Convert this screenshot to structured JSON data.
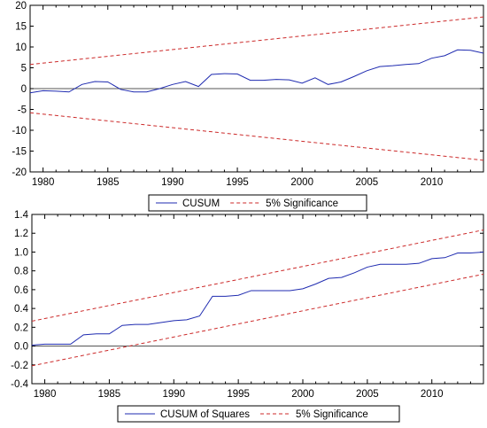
{
  "colors": {
    "series": "#1f2bb0",
    "significance": "#cc2a2a",
    "zero_line": "#555555"
  },
  "chart_data": [
    {
      "type": "line",
      "xlim": [
        1979,
        2014
      ],
      "ylim": [
        -20,
        20
      ],
      "xticks": [
        1980,
        1985,
        1990,
        1995,
        2000,
        2005,
        2010
      ],
      "yticks": [
        -20,
        -15,
        -10,
        -5,
        0,
        5,
        10,
        15,
        20
      ],
      "ytick_labels": [
        "-20",
        "-15",
        "-10",
        "-5",
        "0",
        "5",
        "10",
        "15",
        "20"
      ],
      "grid": false,
      "legend_position": "bottom-center",
      "series": [
        {
          "name": "CUSUM",
          "style": "solid",
          "x": [
            1979,
            1980,
            1981,
            1982,
            1983,
            1984,
            1985,
            1986,
            1987,
            1988,
            1989,
            1990,
            1991,
            1992,
            1993,
            1994,
            1995,
            1996,
            1997,
            1998,
            1999,
            2000,
            2001,
            2002,
            2003,
            2004,
            2005,
            2006,
            2007,
            2008,
            2009,
            2010,
            2011,
            2012,
            2013,
            2014
          ],
          "values": [
            -1.0,
            -0.5,
            -0.6,
            -0.8,
            1.0,
            1.7,
            1.6,
            -0.2,
            -0.8,
            -0.8,
            0.0,
            1.0,
            1.7,
            0.5,
            3.4,
            3.6,
            3.5,
            2.0,
            2.0,
            2.2,
            2.1,
            1.3,
            2.6,
            1.0,
            1.6,
            2.9,
            4.3,
            5.3,
            5.5,
            5.8,
            6.0,
            7.3,
            7.9,
            9.3,
            9.2,
            8.5
          ]
        },
        {
          "name": "5% Significance",
          "style": "dashed",
          "x": [
            1979,
            2014
          ],
          "values": [
            5.8,
            17.2
          ]
        },
        {
          "name": "",
          "style": "dashed",
          "x": [
            1979,
            2014
          ],
          "values": [
            -5.8,
            -17.2
          ]
        }
      ],
      "legend": [
        "CUSUM",
        "5% Significance"
      ]
    },
    {
      "type": "line",
      "xlim": [
        1979,
        2014
      ],
      "ylim": [
        -0.4,
        1.4
      ],
      "xticks": [
        1980,
        1985,
        1990,
        1995,
        2000,
        2005,
        2010
      ],
      "yticks": [
        -0.4,
        -0.2,
        0.0,
        0.2,
        0.4,
        0.6,
        0.8,
        1.0,
        1.2,
        1.4
      ],
      "ytick_labels": [
        "-0.4",
        "-0.2",
        "0.0",
        "0.2",
        "0.4",
        "0.6",
        "0.8",
        "1.0",
        "1.2",
        "1.4"
      ],
      "grid": false,
      "legend_position": "bottom-center",
      "series": [
        {
          "name": "CUSUM of Squares",
          "style": "solid",
          "x": [
            1979,
            1980,
            1981,
            1982,
            1983,
            1984,
            1985,
            1986,
            1987,
            1988,
            1989,
            1990,
            1991,
            1992,
            1993,
            1994,
            1995,
            1996,
            1997,
            1998,
            1999,
            2000,
            2001,
            2002,
            2003,
            2004,
            2005,
            2006,
            2007,
            2008,
            2009,
            2010,
            2011,
            2012,
            2013,
            2014
          ],
          "values": [
            0.01,
            0.02,
            0.02,
            0.02,
            0.12,
            0.13,
            0.13,
            0.22,
            0.23,
            0.23,
            0.25,
            0.27,
            0.28,
            0.32,
            0.53,
            0.53,
            0.54,
            0.59,
            0.59,
            0.59,
            0.59,
            0.61,
            0.66,
            0.72,
            0.73,
            0.78,
            0.84,
            0.87,
            0.87,
            0.87,
            0.88,
            0.93,
            0.94,
            0.99,
            0.99,
            1.0
          ]
        },
        {
          "name": "5% Significance",
          "style": "dashed",
          "x": [
            1979,
            2014
          ],
          "values": [
            0.265,
            1.235
          ]
        },
        {
          "name": "",
          "style": "dashed",
          "x": [
            1979,
            2014
          ],
          "values": [
            -0.21,
            0.765
          ]
        }
      ],
      "legend": [
        "CUSUM of Squares",
        "5% Significance"
      ]
    }
  ]
}
